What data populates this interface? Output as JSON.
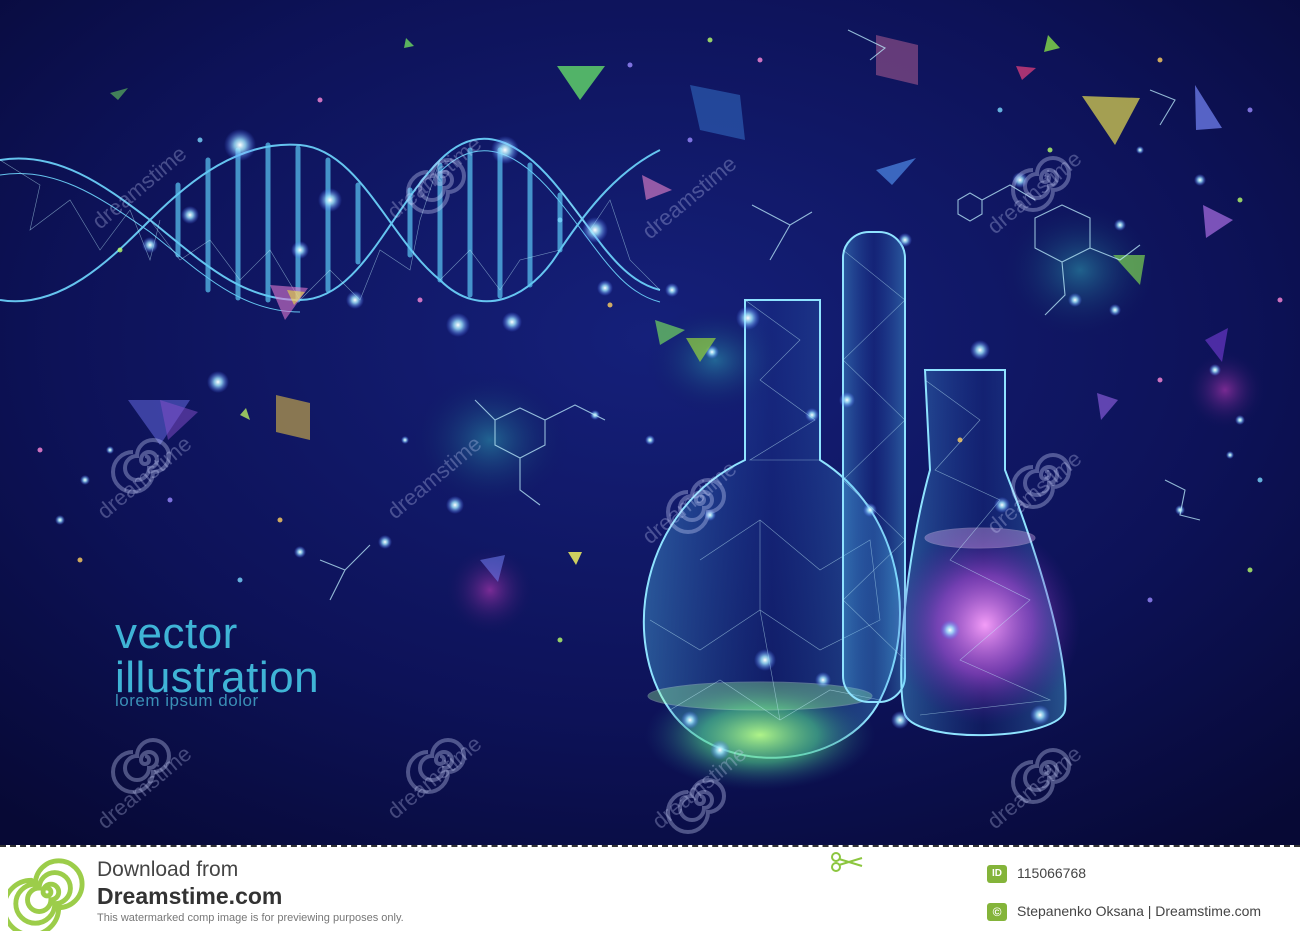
{
  "artwork": {
    "headline_line1": "vector",
    "headline_line2": "illustration",
    "headline_line3": "lorem ipsum dolor",
    "watermark": "dreamstime"
  },
  "footer": {
    "download_from": "Download from",
    "site": "Dreamstime.com",
    "notice": "This watermarked comp image is for previewing purposes only.",
    "id_badge": "ID",
    "image_id": "115066768",
    "copyright_badge": "©",
    "credit": "Stepanenko  Oksana | Dreamstime.com"
  },
  "colors": {
    "background": "#0b0d4a",
    "glow_cyan": "#49c8ff",
    "glow_green": "#7dff8a",
    "glow_purple": "#d97bff",
    "accent_green": "#84b43a"
  }
}
